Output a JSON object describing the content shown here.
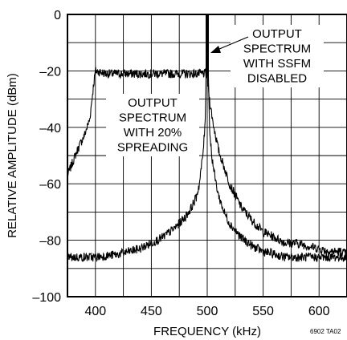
{
  "chart_data": {
    "type": "line",
    "title": "",
    "xlabel": "FREQUENCY (kHz)",
    "ylabel": "RELATIVE AMPLITUDE (dBm)",
    "xlim": [
      375,
      625
    ],
    "ylim": [
      -100,
      0
    ],
    "x_ticks": [
      400,
      450,
      500,
      550,
      600
    ],
    "y_ticks": [
      0,
      -20,
      -40,
      -60,
      -80,
      -100
    ],
    "x_tick_labels": [
      "400",
      "450",
      "500",
      "550",
      "600"
    ],
    "y_tick_labels": [
      "0",
      "–20",
      "–40",
      "–60",
      "–80",
      "–100"
    ],
    "grid": true,
    "legend": "none",
    "line_color": "#000000",
    "series": [
      {
        "x": [
          375,
          380,
          385,
          390,
          395,
          398,
          400,
          410,
          420,
          430,
          440,
          450,
          460,
          470,
          480,
          490,
          498,
          500,
          502,
          505,
          510,
          520,
          530,
          540,
          550,
          560,
          570,
          580,
          590,
          600,
          610,
          620,
          625
        ],
        "y": [
          -57,
          -52,
          -47,
          -43,
          -37,
          -26,
          -20,
          -21,
          -21,
          -21,
          -21,
          -21,
          -21,
          -21,
          -21,
          -21,
          -21,
          -22,
          -30,
          -38,
          -48,
          -60,
          -68,
          -73,
          -77,
          -79,
          -81,
          -81,
          -82,
          -83,
          -84,
          -84,
          -85
        ]
      },
      {
        "x": [
          375,
          400,
          420,
          440,
          450,
          460,
          470,
          480,
          485,
          490,
          493,
          496,
          498,
          499,
          500,
          501,
          502,
          504,
          507,
          510,
          515,
          520,
          530,
          540,
          550,
          560,
          570,
          580,
          590,
          600,
          610,
          620,
          625
        ],
        "y": [
          -86,
          -86,
          -85,
          -83,
          -81,
          -79,
          -76,
          -72,
          -69,
          -65,
          -60,
          -50,
          -40,
          -20,
          0,
          -20,
          -40,
          -50,
          -58,
          -64,
          -70,
          -74,
          -79,
          -82,
          -84,
          -85,
          -86,
          -86,
          -86,
          -86,
          -86,
          -86,
          -86
        ]
      }
    ],
    "annotations": [
      {
        "lines": [
          "OUTPUT",
          "SPECTRUM",
          "WITH SSFM",
          "DISABLED"
        ]
      },
      {
        "lines": [
          "OUTPUT",
          "SPECTRUM",
          "WITH 20%",
          "SPREADING"
        ]
      }
    ],
    "figure_id": "6902 TA02"
  }
}
